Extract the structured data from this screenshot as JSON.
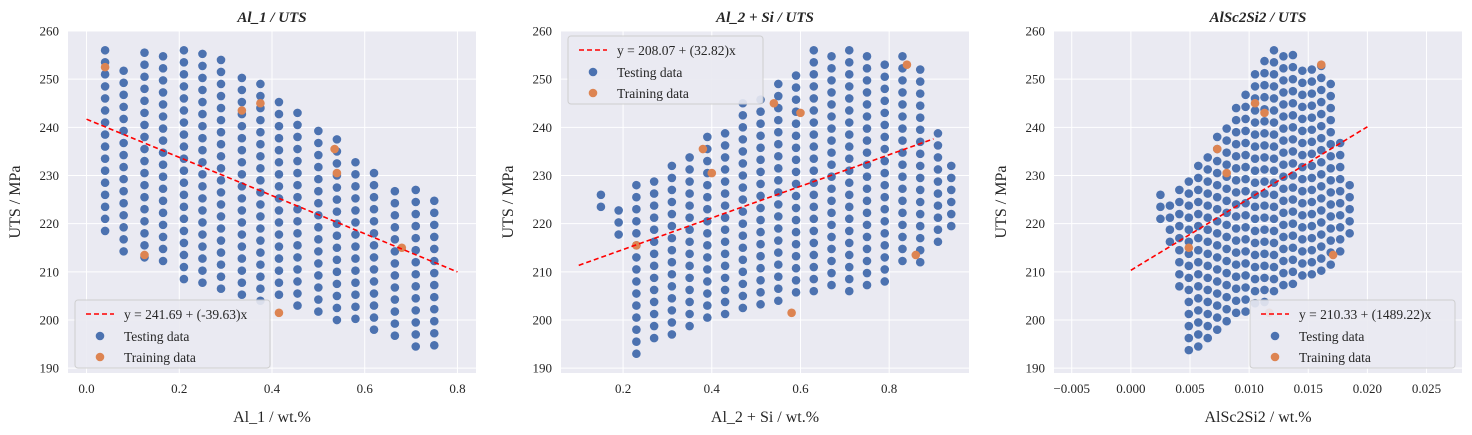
{
  "chart_data": [
    {
      "type": "scatter",
      "title": "Al_1 / UTS",
      "xlabel": "Al_1 / wt.%",
      "ylabel": "UTS / MPa",
      "xlim": [
        -0.04,
        0.84
      ],
      "ylim": [
        189,
        260
      ],
      "xticks": [
        0.0,
        0.2,
        0.4,
        0.6,
        0.8
      ],
      "xtick_labels": [
        "0.0",
        "0.2",
        "0.4",
        "0.6",
        "0.8"
      ],
      "yticks": [
        190,
        200,
        210,
        220,
        230,
        240,
        250,
        260
      ],
      "ytick_labels": [
        "190",
        "200",
        "210",
        "220",
        "230",
        "240",
        "250",
        "260"
      ],
      "grid": true,
      "legend_position": "bottom-left",
      "fit_line": {
        "label": "y = 241.69 + (-39.63)x",
        "x": [
          0.0,
          0.8
        ],
        "color": "#ff0000"
      },
      "testing": {
        "label": "Testing data",
        "color": "#4c72b0",
        "grid_x": [
          0.04,
          0.08,
          0.125,
          0.165,
          0.21,
          0.25,
          0.29,
          0.335,
          0.375,
          0.415,
          0.455,
          0.5,
          0.54,
          0.58,
          0.62,
          0.665,
          0.71,
          0.75
        ],
        "top": [
          256,
          253,
          255.5,
          256,
          256,
          256.5,
          254,
          251.5,
          249,
          246.5,
          243,
          240.5,
          237.5,
          234,
          230.5,
          228,
          227,
          226
        ],
        "bottom": [
          218,
          214,
          212,
          210,
          208,
          206,
          205,
          204,
          203.5,
          203,
          202,
          201,
          199,
          198,
          197,
          195,
          194,
          193
        ],
        "step": 2.5
      },
      "training": {
        "label": "Training data",
        "color": "#dd8452",
        "points": [
          [
            0.04,
            252.5
          ],
          [
            0.125,
            213.5
          ],
          [
            0.335,
            243.5
          ],
          [
            0.375,
            245
          ],
          [
            0.415,
            201.5
          ],
          [
            0.535,
            235.5
          ],
          [
            0.54,
            230.5
          ],
          [
            0.68,
            215
          ]
        ]
      }
    },
    {
      "type": "scatter",
      "title": "Al_2 + Si / UTS",
      "xlabel": "Al_2 + Si / wt.%",
      "ylabel": "UTS / MPa",
      "xlim": [
        0.06,
        0.98
      ],
      "ylim": [
        189,
        260
      ],
      "xticks": [
        0.2,
        0.4,
        0.6,
        0.8
      ],
      "xtick_labels": [
        "0.2",
        "0.4",
        "0.6",
        "0.8"
      ],
      "yticks": [
        190,
        200,
        210,
        220,
        230,
        240,
        250,
        260
      ],
      "ytick_labels": [
        "190",
        "200",
        "210",
        "220",
        "230",
        "240",
        "250",
        "260"
      ],
      "grid": true,
      "legend_position": "top-left",
      "fit_line": {
        "label": "y = 208.07 + (32.82)x",
        "x": [
          0.1,
          0.9
        ],
        "color": "#ff0000"
      },
      "testing": {
        "label": "Testing data",
        "color": "#4c72b0",
        "grid_x": [
          0.15,
          0.19,
          0.23,
          0.27,
          0.31,
          0.35,
          0.39,
          0.43,
          0.47,
          0.51,
          0.55,
          0.59,
          0.63,
          0.67,
          0.71,
          0.75,
          0.79,
          0.83,
          0.87,
          0.91,
          0.94
        ],
        "top": [
          226,
          224,
          228,
          230,
          232,
          235,
          238,
          240,
          245,
          247,
          249,
          252,
          256,
          256,
          256,
          256,
          253,
          256,
          252,
          240,
          232
        ],
        "bottom": [
          223,
          216,
          193,
          194,
          196,
          198,
          199,
          200,
          201,
          202,
          203,
          204,
          205,
          206,
          206,
          206,
          207,
          210,
          211,
          214,
          218
        ],
        "step": 2.5
      },
      "training": {
        "label": "Training data",
        "color": "#dd8452",
        "points": [
          [
            0.23,
            215.5
          ],
          [
            0.38,
            235.5
          ],
          [
            0.4,
            230.5
          ],
          [
            0.54,
            245
          ],
          [
            0.58,
            201.5
          ],
          [
            0.6,
            243
          ],
          [
            0.84,
            253
          ],
          [
            0.86,
            213.5
          ]
        ]
      }
    },
    {
      "type": "scatter",
      "title": "AlSc2Si2 / UTS",
      "xlabel": "AlSc2Si2 / wt.%",
      "ylabel": "UTS / MPa",
      "xlim": [
        -0.0065,
        0.028
      ],
      "ylim": [
        189,
        260
      ],
      "xticks": [
        -0.005,
        0.0,
        0.005,
        0.01,
        0.015,
        0.02,
        0.025
      ],
      "xtick_labels": [
        "−0.005",
        "0.000",
        "0.005",
        "0.010",
        "0.015",
        "0.020",
        "0.025"
      ],
      "yticks": [
        190,
        200,
        210,
        220,
        230,
        240,
        250,
        260
      ],
      "ytick_labels": [
        "190",
        "200",
        "210",
        "220",
        "230",
        "240",
        "250",
        "260"
      ],
      "grid": true,
      "legend_position": "bottom-right",
      "fit_line": {
        "label": "y = 210.33 + (1489.22)x",
        "x": [
          0.0,
          0.02
        ],
        "color": "#ff0000"
      },
      "testing": {
        "label": "Testing data",
        "color": "#4c72b0",
        "grid_x": [
          0.0025,
          0.0033,
          0.0041,
          0.0049,
          0.0057,
          0.0065,
          0.0073,
          0.0081,
          0.0089,
          0.0097,
          0.0105,
          0.0113,
          0.0121,
          0.0129,
          0.0137,
          0.0145,
          0.0153,
          0.0161,
          0.0169,
          0.0177,
          0.0185
        ],
        "top": [
          226,
          225,
          227,
          230,
          232,
          235,
          238,
          241,
          244,
          248,
          251,
          255,
          256,
          256,
          255,
          253,
          252,
          254,
          249,
          238,
          228
        ],
        "bottom": [
          219,
          215,
          206,
          192,
          194,
          196,
          198,
          199,
          200,
          201,
          202,
          203,
          204,
          205,
          206,
          207,
          208,
          209,
          211,
          214,
          218
        ],
        "step": 2.5
      },
      "training": {
        "label": "Training data",
        "color": "#dd8452",
        "points": [
          [
            0.0049,
            215
          ],
          [
            0.0073,
            235.5
          ],
          [
            0.0081,
            230.5
          ],
          [
            0.0105,
            245
          ],
          [
            0.0113,
            243
          ],
          [
            0.0161,
            253
          ],
          [
            0.0171,
            213.5
          ],
          [
            0.0117,
            201.5
          ]
        ]
      }
    }
  ]
}
